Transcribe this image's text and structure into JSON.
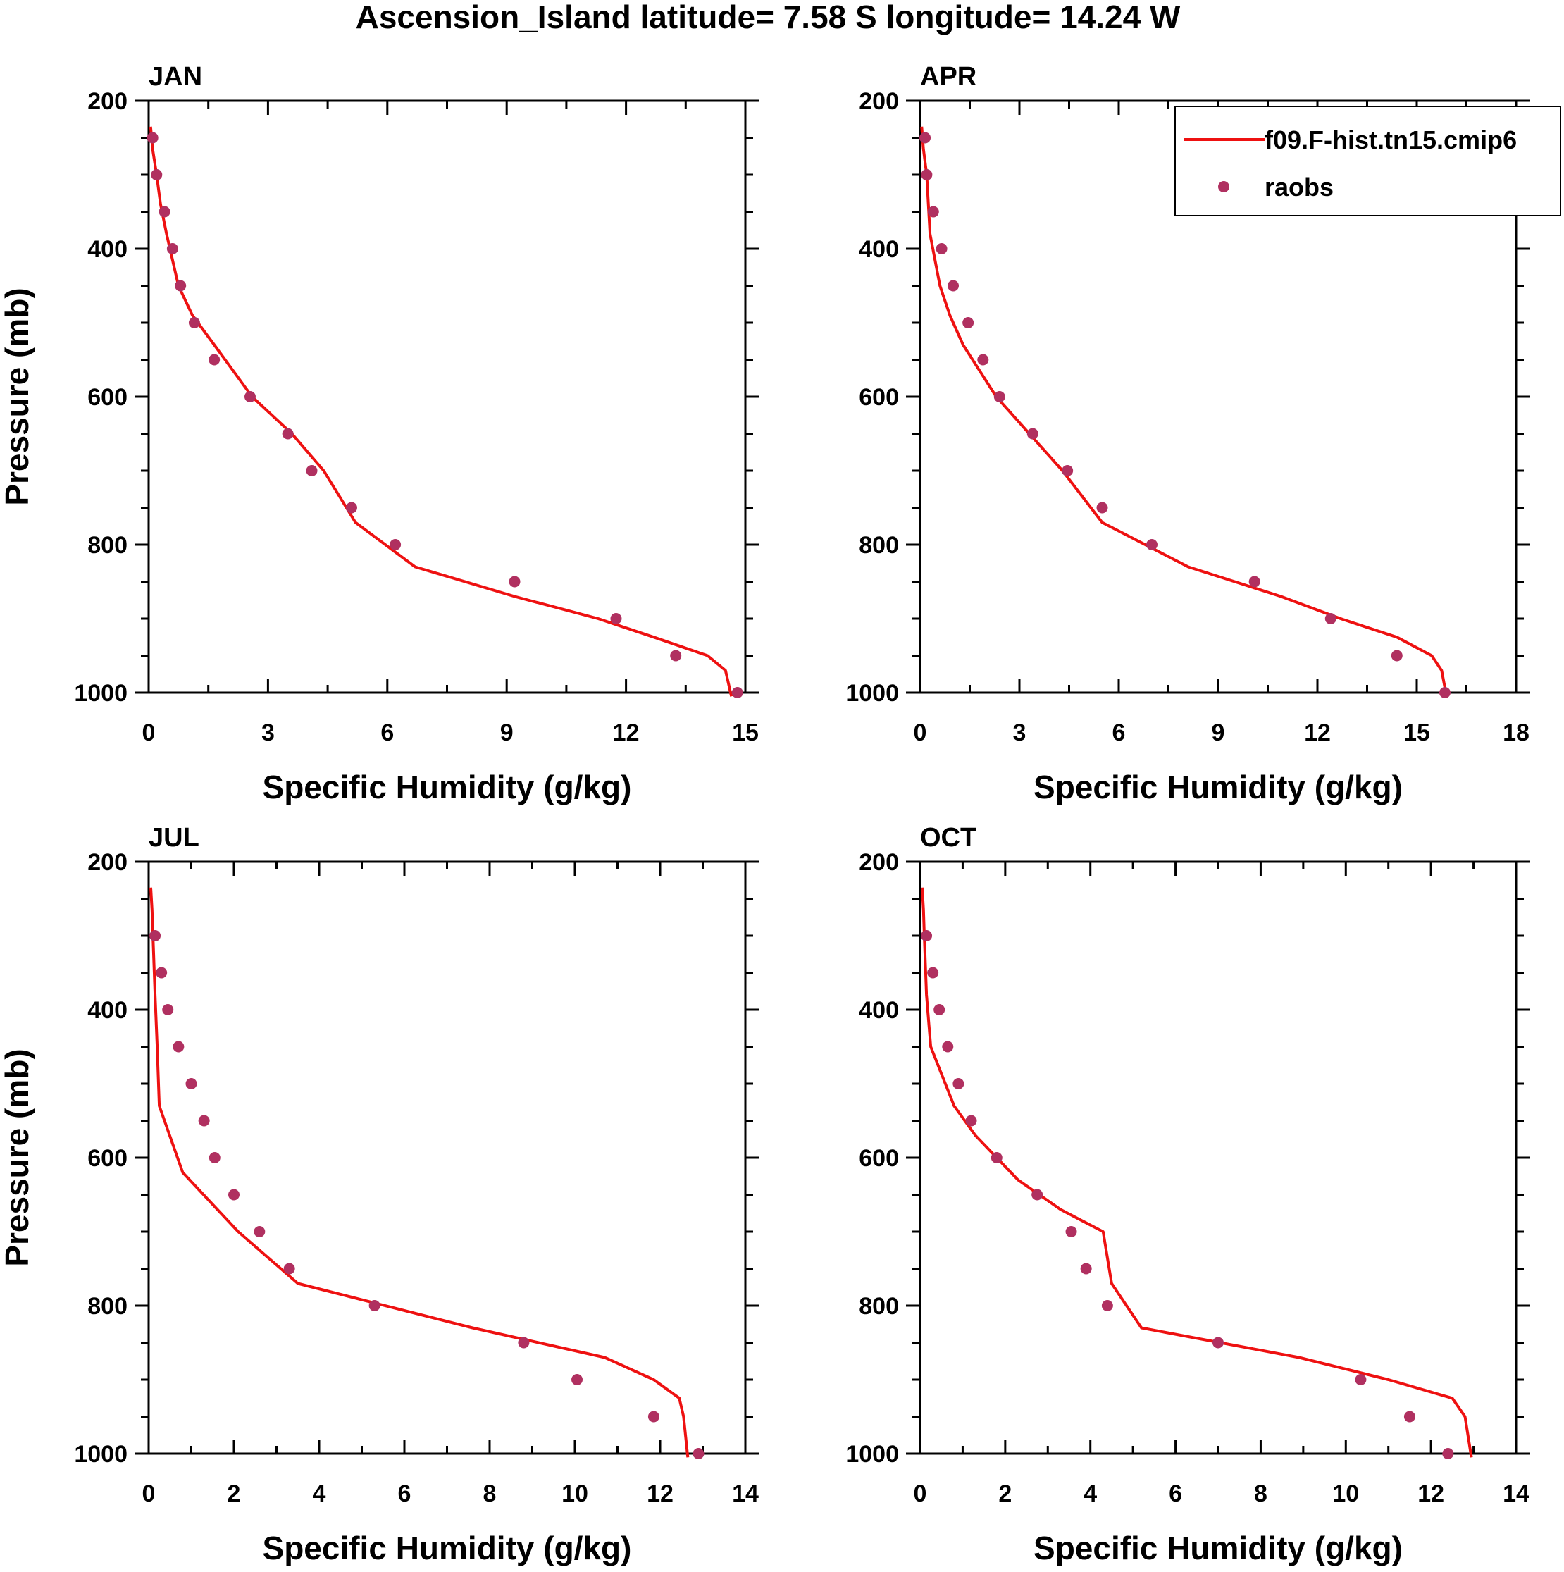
{
  "title": "Ascension_Island  latitude= 7.58 S longitude= 14.24 W",
  "colors": {
    "model": "#ee1111",
    "obs": "#b03060",
    "axis": "#000000"
  },
  "legend": {
    "placement": "top-right of APR panel",
    "model_label": "f09.F-hist.tn15.cmip6",
    "obs_label": "raobs"
  },
  "chart_data": [
    {
      "type": "line",
      "panel": "JAN",
      "xlabel": "Specific Humidity (g/kg)",
      "ylabel": "Pressure (mb)",
      "xlim": [
        0,
        15
      ],
      "xticks": [
        0,
        3,
        6,
        9,
        12,
        15
      ],
      "ylim": [
        200,
        1000
      ],
      "y_reversed": true,
      "yticks": [
        200,
        400,
        600,
        800,
        1000
      ],
      "series": [
        {
          "name": "f09.F-hist.tn15.cmip6",
          "kind": "line",
          "x": [
            0.05,
            0.1,
            0.2,
            0.3,
            0.45,
            0.75,
            1.1,
            1.65,
            2.6,
            3.6,
            4.4,
            5.2,
            6.7,
            9.2,
            11.3,
            12.7,
            14.05,
            14.5,
            14.65
          ],
          "y": [
            235,
            265,
            300,
            340,
            380,
            450,
            490,
            530,
            600,
            650,
            700,
            770,
            830,
            870,
            900,
            925,
            950,
            970,
            1005
          ]
        },
        {
          "name": "raobs",
          "kind": "scatter",
          "x": [
            0.1,
            0.2,
            0.4,
            0.6,
            0.8,
            1.15,
            1.65,
            2.55,
            3.5,
            4.1,
            5.1,
            6.2,
            9.2,
            11.75,
            13.25,
            14.8
          ],
          "y": [
            250,
            300,
            350,
            400,
            450,
            500,
            550,
            600,
            650,
            700,
            750,
            800,
            850,
            900,
            950,
            1000
          ]
        }
      ]
    },
    {
      "type": "line",
      "panel": "APR",
      "xlabel": "Specific Humidity (g/kg)",
      "ylabel": "",
      "xlim": [
        0,
        18
      ],
      "xticks": [
        0,
        3,
        6,
        9,
        12,
        15,
        18
      ],
      "ylim": [
        200,
        1000
      ],
      "y_reversed": true,
      "yticks": [
        200,
        400,
        600,
        800,
        1000
      ],
      "series": [
        {
          "name": "f09.F-hist.tn15.cmip6",
          "kind": "line",
          "x": [
            0.05,
            0.1,
            0.2,
            0.3,
            0.6,
            0.9,
            1.3,
            2.3,
            3.3,
            4.3,
            5.5,
            8.1,
            10.9,
            12.7,
            14.4,
            15.45,
            15.75,
            15.9
          ],
          "y": [
            235,
            265,
            300,
            380,
            450,
            490,
            530,
            600,
            650,
            700,
            770,
            830,
            870,
            900,
            925,
            950,
            970,
            1005
          ]
        },
        {
          "name": "raobs",
          "kind": "scatter",
          "x": [
            0.15,
            0.2,
            0.4,
            0.65,
            1.0,
            1.45,
            1.9,
            2.4,
            3.4,
            4.45,
            5.5,
            7.0,
            10.1,
            12.4,
            14.4,
            15.85
          ],
          "y": [
            250,
            300,
            350,
            400,
            450,
            500,
            550,
            600,
            650,
            700,
            750,
            800,
            850,
            900,
            950,
            1000
          ]
        }
      ]
    },
    {
      "type": "line",
      "panel": "JUL",
      "xlabel": "Specific Humidity (g/kg)",
      "ylabel": "Pressure (mb)",
      "xlim": [
        0,
        14
      ],
      "xticks": [
        0,
        2,
        4,
        6,
        8,
        10,
        12,
        14
      ],
      "ylim": [
        200,
        1000
      ],
      "y_reversed": true,
      "yticks": [
        200,
        400,
        600,
        800,
        1000
      ],
      "series": [
        {
          "name": "f09.F-hist.tn15.cmip6",
          "kind": "line",
          "x": [
            0.05,
            0.08,
            0.1,
            0.15,
            0.2,
            0.25,
            0.8,
            2.1,
            3.5,
            7.6,
            10.7,
            11.85,
            12.45,
            12.55,
            12.65
          ],
          "y": [
            235,
            265,
            300,
            380,
            450,
            530,
            620,
            700,
            770,
            830,
            870,
            900,
            925,
            950,
            1005
          ]
        },
        {
          "name": "raobs",
          "kind": "scatter",
          "x": [
            0.15,
            0.3,
            0.45,
            0.7,
            1.0,
            1.3,
            1.55,
            2.0,
            2.6,
            3.3,
            5.3,
            8.8,
            10.05,
            11.85,
            12.9
          ],
          "y": [
            300,
            350,
            400,
            450,
            500,
            550,
            600,
            650,
            700,
            750,
            800,
            850,
            900,
            950,
            1000
          ]
        }
      ]
    },
    {
      "type": "line",
      "panel": "OCT",
      "xlabel": "Specific Humidity (g/kg)",
      "ylabel": "",
      "xlim": [
        0,
        14
      ],
      "xticks": [
        0,
        2,
        4,
        6,
        8,
        10,
        12,
        14
      ],
      "ylim": [
        200,
        1000
      ],
      "y_reversed": true,
      "yticks": [
        200,
        400,
        600,
        800,
        1000
      ],
      "series": [
        {
          "name": "f09.F-hist.tn15.cmip6",
          "kind": "line",
          "x": [
            0.05,
            0.08,
            0.1,
            0.15,
            0.25,
            0.8,
            1.3,
            2.3,
            3.3,
            4.3,
            4.5,
            5.2,
            8.9,
            11.0,
            12.5,
            12.8,
            12.95
          ],
          "y": [
            235,
            265,
            300,
            380,
            450,
            530,
            570,
            630,
            670,
            700,
            770,
            830,
            870,
            900,
            925,
            950,
            1005
          ]
        },
        {
          "name": "raobs",
          "kind": "scatter",
          "x": [
            0.15,
            0.3,
            0.45,
            0.65,
            0.9,
            1.2,
            1.8,
            2.75,
            3.55,
            3.9,
            4.4,
            7.0,
            10.35,
            11.5,
            12.4
          ],
          "y": [
            300,
            350,
            400,
            450,
            500,
            550,
            600,
            650,
            700,
            750,
            800,
            850,
            900,
            950,
            1000
          ]
        }
      ]
    }
  ]
}
